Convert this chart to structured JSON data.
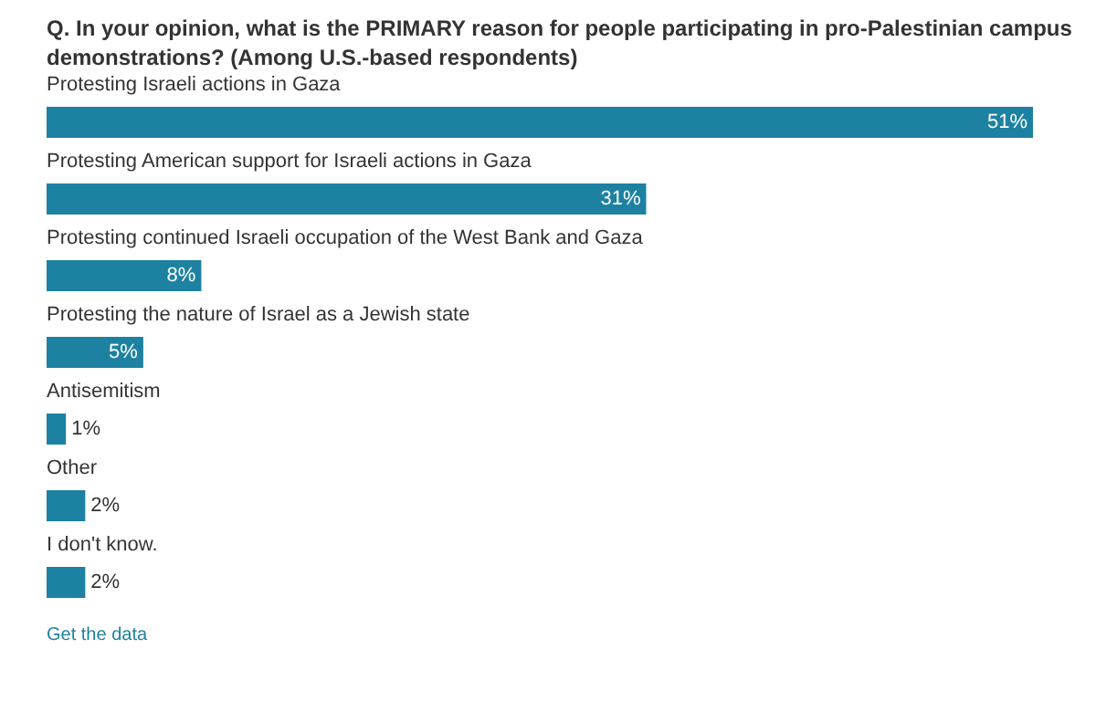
{
  "chart_data": {
    "type": "bar",
    "orientation": "horizontal",
    "title": "Q. In your opinion, what is the PRIMARY reason for people participating in pro-Palestinian campus demonstrations? (Among U.S.-based respondents)",
    "categories": [
      "Protesting Israeli actions in Gaza",
      "Protesting American support for Israeli actions in Gaza",
      "Protesting continued Israeli occupation of the West Bank and Gaza",
      "Protesting the nature of Israel as a Jewish state",
      "Antisemitism",
      "Other",
      "I don't know."
    ],
    "values": [
      51,
      31,
      8,
      5,
      1,
      2,
      2
    ],
    "value_labels": [
      "51%",
      "31%",
      "8%",
      "5%",
      "1%",
      "2%",
      "2%"
    ],
    "color": "#1d81a2",
    "annotations": [
      "Get the data"
    ]
  }
}
